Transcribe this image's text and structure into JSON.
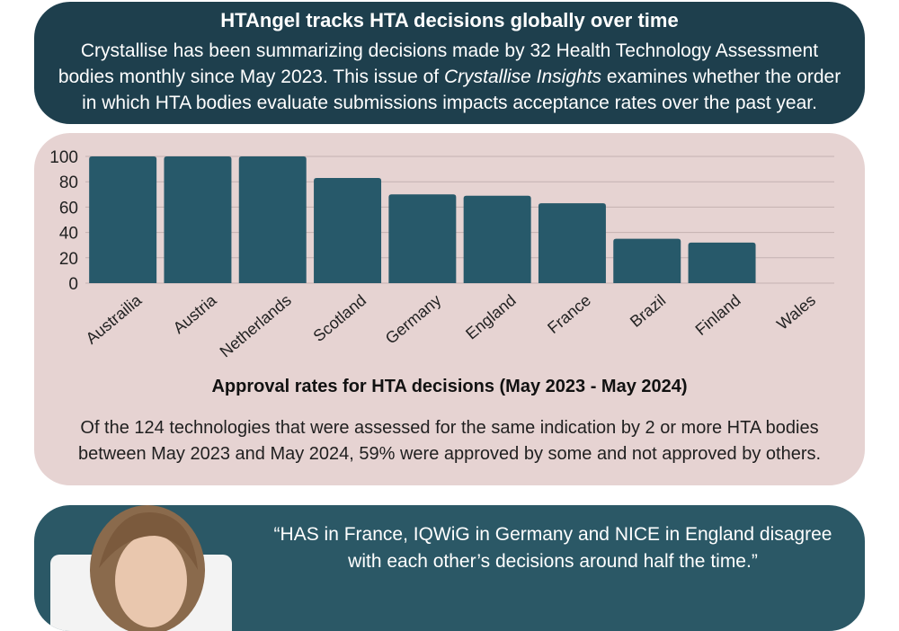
{
  "hero": {
    "title": "HTAngel tracks HTA decisions globally over time",
    "text_before": "Crystallise has been summarizing decisions made by 32 Health Technology Assessment bodies monthly since May 2023. This issue of ",
    "text_italic": "Crystallise Insights",
    "text_after": " examines whether the order in which HTA bodies evaluate submissions impacts acceptance rates over the past year."
  },
  "chart_data": {
    "type": "bar",
    "title": "Approval rates for HTA decisions (May 2023 - May 2024)",
    "xlabel": "",
    "ylabel": "",
    "categories": [
      "Austrailia",
      "Austria",
      "Netherlands",
      "Scotland",
      "Germany",
      "England",
      "France",
      "Brazil",
      "Finland",
      "Wales"
    ],
    "values": [
      100,
      100,
      100,
      83,
      70,
      69,
      63,
      35,
      32,
      0
    ],
    "ylim": [
      0,
      100
    ],
    "yticks": [
      "0",
      "20",
      "40",
      "60",
      "80",
      "100"
    ],
    "grid": true,
    "legend": "none",
    "bar_color": "#27596a",
    "grid_color": "#c4b2b1"
  },
  "chart_caption": "Of the 124 technologies that were assessed for the same indication by 2 or more HTA bodies between May 2023 and May 2024, 59% were approved by some and not approved by others.",
  "quote": {
    "text": "“HAS in France, IQWiG in Germany and NICE in England disagree with each other’s decisions around half the time.”"
  },
  "colors": {
    "hero_bg": "#1e3f4d",
    "chart_card_bg": "#e6d3d2",
    "quote_card_bg": "#2b5866"
  }
}
